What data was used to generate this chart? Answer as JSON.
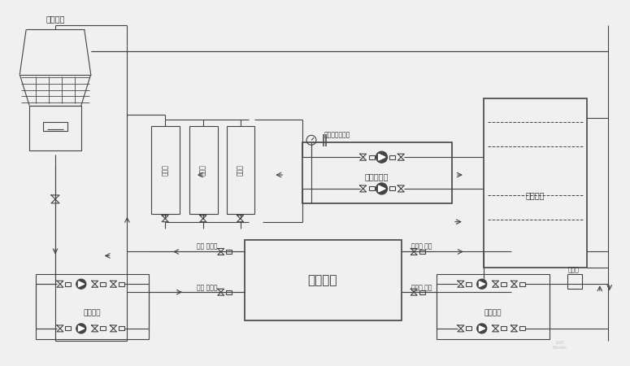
{
  "bg_color": "#f0f0f0",
  "line_color": "#444444",
  "figsize": [
    7.75,
    4.5
  ],
  "dpi": 100,
  "labels": {
    "cooling_tower": "冷却水塔",
    "chiller_group": "冷冻机组",
    "chilled_water_tank": "冷冻水筒",
    "cooling_pump": "冷却水泵",
    "pressure_pump": "压力输水泵",
    "pressure_temp": "压力表、温度计",
    "producer": "生产线",
    "cold_water_pump": "冷冻水筒",
    "valve_soft1": "阀阀 软接头",
    "valve_soft2": "阀阀 软接头",
    "soft_valve1": "软接头 阀阀",
    "soft_valve2": "软接头 阀阀",
    "filter": "过滤器"
  }
}
